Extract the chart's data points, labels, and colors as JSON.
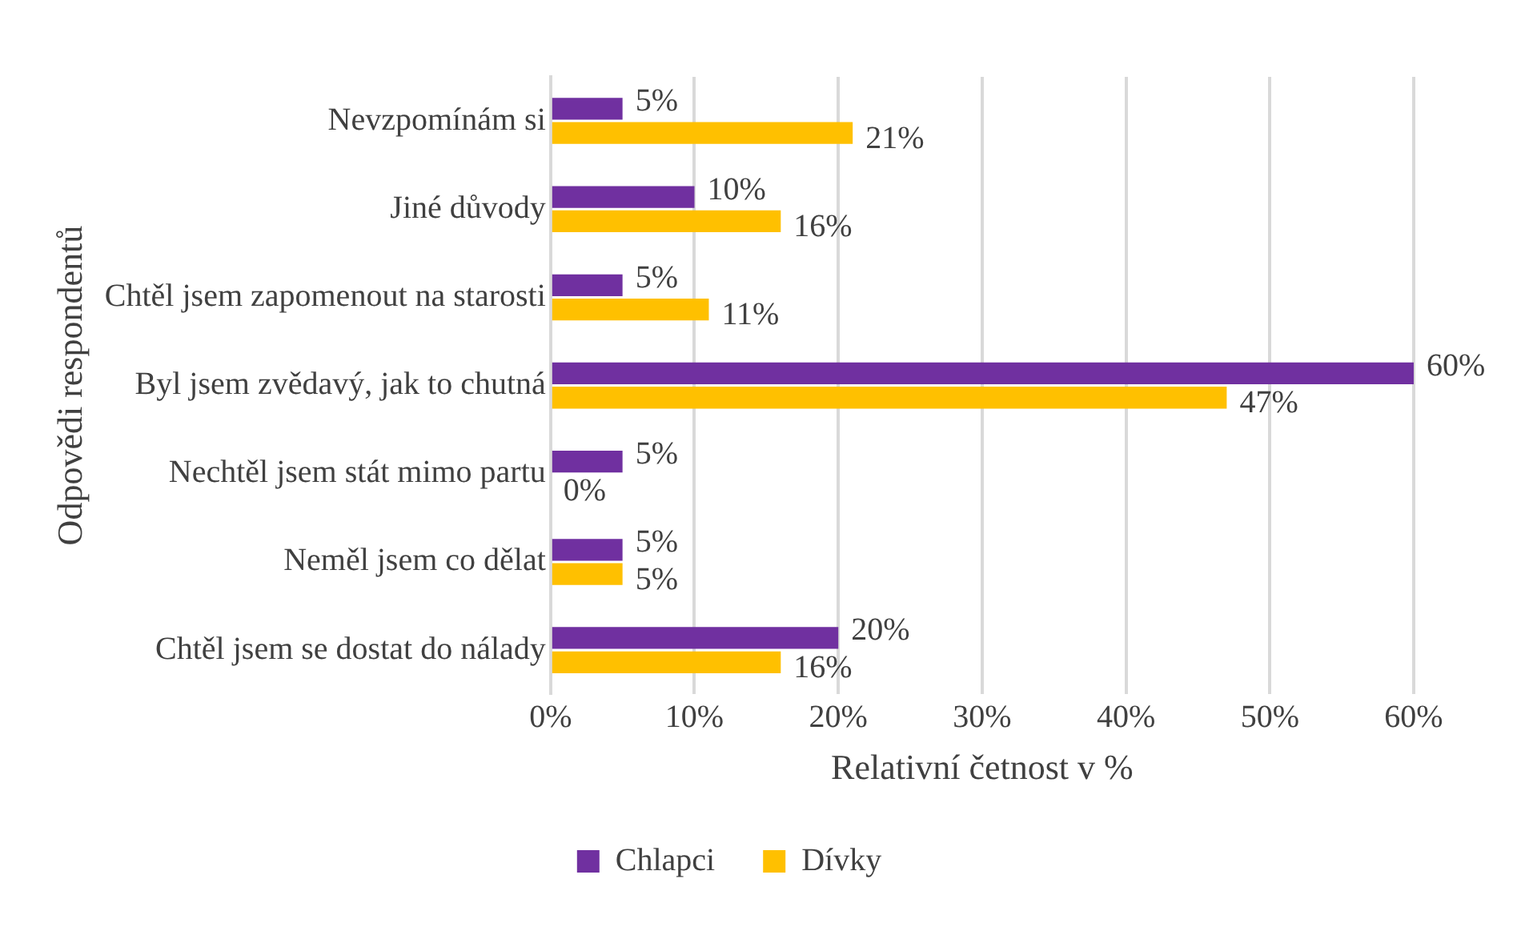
{
  "chart_data": {
    "type": "bar",
    "orientation": "horizontal",
    "xlabel": "Relativní četnost v %",
    "ylabel": "Odpovědi respondentů",
    "categories": [
      "Nevzpomínám si",
      "Jiné důvody",
      "Chtěl jsem zapomenout na starosti",
      "Byl jsem zvědavý, jak to chutná",
      "Nechtěl jsem stát mimo partu",
      "Neměl jsem co dělat",
      "Chtěl jsem se dostat do nálady"
    ],
    "series": [
      {
        "name": "Chlapci",
        "color": "#7030a0",
        "values": [
          5,
          10,
          5,
          60,
          5,
          5,
          20
        ],
        "value_labels": [
          "5%",
          "10%",
          "5%",
          "60%",
          "5%",
          "5%",
          "20%"
        ]
      },
      {
        "name": "Dívky",
        "color": "#ffc000",
        "values": [
          21,
          16,
          11,
          47,
          0,
          5,
          16
        ],
        "value_labels": [
          "21%",
          "16%",
          "11%",
          "47%",
          "0%",
          "5%",
          "16%"
        ]
      }
    ],
    "xlim": [
      0,
      60
    ],
    "xticks": [
      {
        "value": 0,
        "label": "0%"
      },
      {
        "value": 10,
        "label": "10%"
      },
      {
        "value": 20,
        "label": "20%"
      },
      {
        "value": 30,
        "label": "30%"
      },
      {
        "value": 40,
        "label": "40%"
      },
      {
        "value": 50,
        "label": "50%"
      },
      {
        "value": 60,
        "label": "60%"
      }
    ],
    "grid": "x",
    "legend": "bottom"
  }
}
